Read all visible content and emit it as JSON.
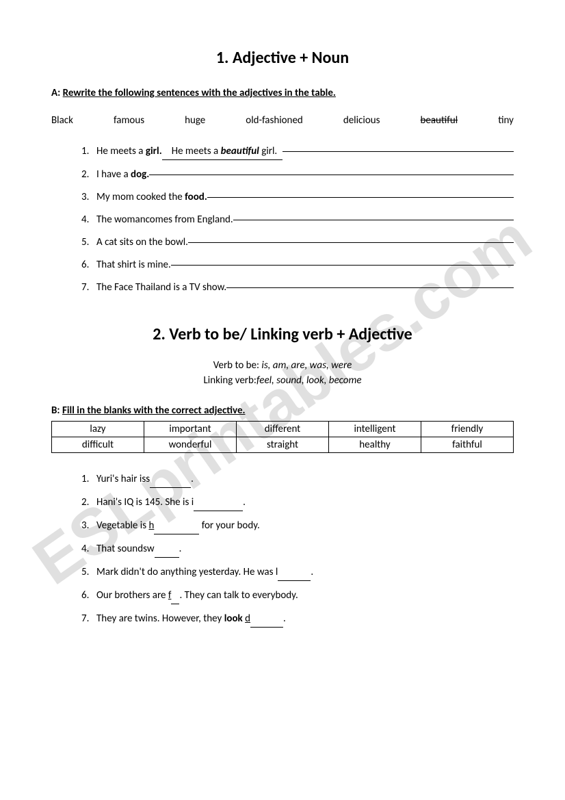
{
  "watermark": "ESLprintables.com",
  "section1": {
    "title": "1. Adjective + Noun",
    "instruction_label": "A:",
    "instruction_text": "Rewrite the following sentences with the adjectives in the table.",
    "words": [
      "Black",
      "famous",
      "huge",
      "old-fashioned",
      "delicious",
      "beautiful",
      "tiny"
    ],
    "strike_index": 5,
    "questions": [
      {
        "n": "1.",
        "prompt": "He meets a ",
        "prompt_bold": "girl.",
        "answer_pre": "He meets a ",
        "answer_italic": "beautiful",
        "answer_post": " girl."
      },
      {
        "n": "2.",
        "prompt": "I have a ",
        "prompt_bold": "dog."
      },
      {
        "n": "3.",
        "prompt": "My mom cooked the ",
        "prompt_bold": "food."
      },
      {
        "n": "4.",
        "prompt": "The womancomes from England."
      },
      {
        "n": "5.",
        "prompt": "A cat sits on the bowl."
      },
      {
        "n": "6.",
        "prompt": "That shirt is mine."
      },
      {
        "n": "7.",
        "prompt": "The Face Thailand is a TV show."
      }
    ]
  },
  "section2": {
    "title": "2. Verb to be/ Linking verb + Adjective",
    "vtb_label": "Verb to be:   ",
    "vtb_value": "is, am, are, was, were",
    "lv_label": "Linking verb:",
    "lv_value": "feel, sound, look, become",
    "instruction_label": "B:",
    "instruction_text": "Fill in the blanks with the correct adjective.",
    "table": [
      [
        "lazy",
        "important",
        "different",
        "intelligent",
        "friendly"
      ],
      [
        "difficult",
        "wonderful",
        "straight",
        "healthy",
        "faithful"
      ]
    ],
    "questions": [
      {
        "n": "1.",
        "pre": "Yuri's hair is",
        "letter": "s",
        "blank": "          ",
        "post": "."
      },
      {
        "n": "2.",
        "pre": "Hani's IQ is 145. She is ",
        "letter": "i",
        "blank": "            ",
        "post": "."
      },
      {
        "n": "3.",
        "pre": "Vegetable is ",
        "letter": "h",
        "under": true,
        "blank": "           ",
        "post": " for your body."
      },
      {
        "n": "4.",
        "pre": "That sounds",
        "letter": "w",
        "blank": "      ",
        "post": "."
      },
      {
        "n": "5.",
        "pre": "Mark didn't do anything yesterday. He was ",
        "letter": "l",
        "blank": "        ",
        "post": "."
      },
      {
        "n": "6.",
        "pre": "Our brothers are ",
        "letter": "f",
        "under": true,
        "blank": "  ",
        "post": ". They can talk to everybody."
      },
      {
        "n": "7.",
        "pre": "They are twins. However, they ",
        "bold": "look ",
        "letter": "d",
        "under": true,
        "blank": "        ",
        "post": "."
      }
    ]
  }
}
